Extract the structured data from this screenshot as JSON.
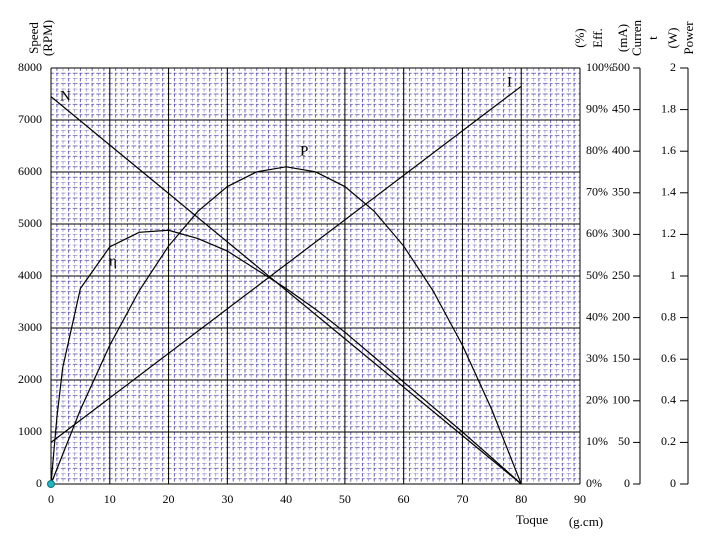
{
  "chart_data": {
    "type": "line",
    "ylabel": [
      "Speed",
      "(RPM)"
    ],
    "y2label": [
      "(%)",
      "Eff."
    ],
    "y3label": [
      "(mA)",
      "Curren",
      "t"
    ],
    "y4label": [
      "(W)",
      "Power"
    ],
    "xlabel": "Toque",
    "xunit": "(g.cm)",
    "xlim": [
      0,
      90
    ],
    "xticks": [
      0,
      10,
      20,
      30,
      40,
      50,
      60,
      70,
      80,
      90
    ],
    "ylim": [
      0,
      8000
    ],
    "yticks": [
      0,
      1000,
      2000,
      3000,
      4000,
      5000,
      6000,
      7000,
      8000
    ],
    "y2lim": [
      0,
      100
    ],
    "y2ticks": [
      {
        "value": 0,
        "label": "0%"
      },
      {
        "value": 10,
        "label": "10%"
      },
      {
        "value": 20,
        "label": "20%"
      },
      {
        "value": 30,
        "label": "30%"
      },
      {
        "value": 40,
        "label": "40%"
      },
      {
        "value": 50,
        "label": "50%"
      },
      {
        "value": 60,
        "label": "60%"
      },
      {
        "value": 70,
        "label": "70%"
      },
      {
        "value": 80,
        "label": "80%"
      },
      {
        "value": 90,
        "label": "90%"
      },
      {
        "value": 100,
        "label": "100%"
      }
    ],
    "y3lim": [
      0,
      500
    ],
    "y3ticks": [
      0,
      50,
      100,
      150,
      200,
      250,
      300,
      350,
      400,
      450,
      500
    ],
    "y4lim": [
      0,
      2
    ],
    "y4ticks": [
      0,
      0.2,
      0.4,
      0.6,
      0.8,
      1,
      1.2,
      1.4,
      1.6,
      1.8,
      2
    ],
    "grid": true,
    "series": [
      {
        "name": "N",
        "color": "#000000",
        "axis": "y",
        "x": [
          0,
          80
        ],
        "values": [
          7450,
          0
        ]
      },
      {
        "name": "I",
        "color": "#000000",
        "axis": "y3",
        "x": [
          0,
          80
        ],
        "values": [
          50,
          478
        ]
      },
      {
        "name": "P",
        "color": "#000000",
        "axis": "y4",
        "x": [
          0,
          5,
          10,
          15,
          20,
          25,
          30,
          35,
          40,
          45,
          50,
          55,
          60,
          65,
          70,
          75,
          80
        ],
        "values": [
          0,
          0.357,
          0.667,
          0.929,
          1.144,
          1.311,
          1.43,
          1.501,
          1.525,
          1.501,
          1.43,
          1.311,
          1.144,
          0.929,
          0.667,
          0.357,
          0
        ]
      },
      {
        "name": "η",
        "color": "#000000",
        "axis": "y2",
        "x": [
          0,
          1,
          2,
          5,
          10,
          15,
          20,
          25,
          30,
          35,
          40,
          45,
          50,
          55,
          60,
          65,
          70,
          75,
          80
        ],
        "values": [
          0,
          16,
          28,
          47,
          57,
          60.5,
          61,
          59,
          56,
          51.5,
          47,
          42,
          36.5,
          30.5,
          24.5,
          18.5,
          12.5,
          6.3,
          0
        ]
      }
    ]
  }
}
